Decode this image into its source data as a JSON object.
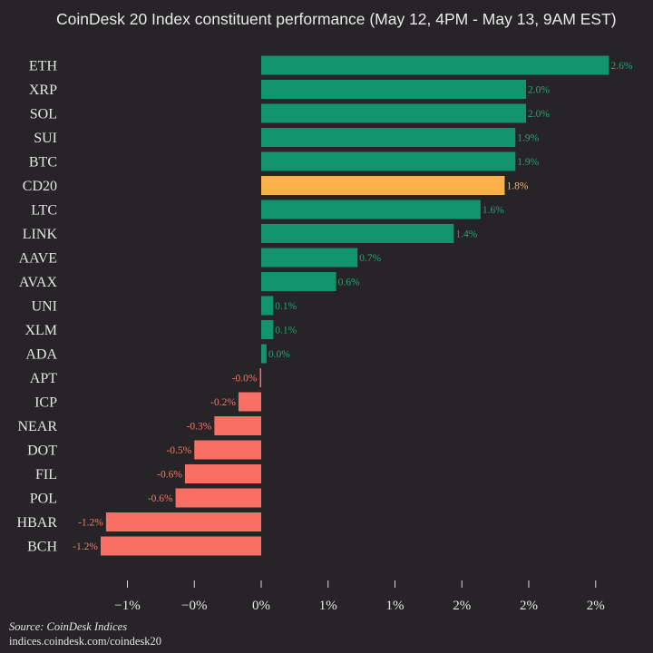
{
  "chart_data": {
    "type": "bar",
    "orientation": "horizontal",
    "title": "CoinDesk 20 Index constituent performance (May 12, 4PM - May 13, 9AM EST)",
    "categories": [
      "ETH",
      "XRP",
      "SOL",
      "SUI",
      "BTC",
      "CD20",
      "LTC",
      "LINK",
      "AAVE",
      "AVAX",
      "UNI",
      "XLM",
      "ADA",
      "APT",
      "ICP",
      "NEAR",
      "DOT",
      "FIL",
      "POL",
      "HBAR",
      "BCH"
    ],
    "values": [
      2.6,
      1.98,
      1.98,
      1.9,
      1.9,
      1.82,
      1.64,
      1.44,
      0.72,
      0.56,
      0.09,
      0.09,
      0.04,
      -0.01,
      -0.17,
      -0.35,
      -0.5,
      -0.57,
      -0.64,
      -1.16,
      -1.2
    ],
    "value_labels": [
      "2.6%",
      "2.0%",
      "2.0%",
      "1.9%",
      "1.9%",
      "1.8%",
      "1.6%",
      "1.4%",
      "0.7%",
      "0.6%",
      "0.1%",
      "0.1%",
      "0.0%",
      "-0.0%",
      "-0.2%",
      "-0.3%",
      "-0.5%",
      "-0.6%",
      "-0.6%",
      "-1.2%",
      "-1.2%"
    ],
    "highlight_category": "CD20",
    "xlim": [
      -1.6,
      2.8
    ],
    "xticks": [
      -1,
      -0.5,
      0,
      0.5,
      1,
      1.5,
      2,
      2.5
    ],
    "xtick_labels": [
      "−1%",
      "−0%",
      "0%",
      "1%",
      "1%",
      "2%",
      "2%",
      "2%"
    ],
    "xlabel": "",
    "ylabel": "",
    "grid": false,
    "legend": false,
    "source": "Source: CoinDesk Indices",
    "url": "indices.coindesk.com/coindesk20",
    "colors": {
      "positive": "#14946a",
      "positive_label": "#1fa678",
      "negative": "#fa6f64",
      "negative_label": "#f2786c",
      "highlight": "#fcb149",
      "highlight_label": "#f5b86a",
      "background": "#262426",
      "text": "#e6e6e6"
    }
  }
}
